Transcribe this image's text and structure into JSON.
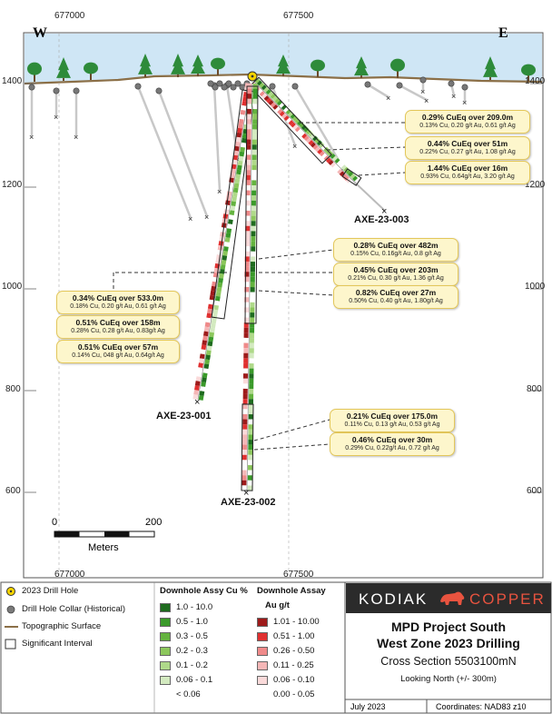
{
  "map": {
    "directions": {
      "west": "W",
      "east": "E"
    },
    "x_ticks_top": [
      "677000",
      "677500"
    ],
    "x_ticks_bottom": [
      "677000",
      "677500"
    ],
    "elevation_ticks": [
      "1400",
      "1200",
      "1000",
      "800",
      "600"
    ],
    "scale_bar": {
      "start": "0",
      "end": "200",
      "unit": "Meters"
    }
  },
  "drill_holes": {
    "axe_23_003": "AXE-23-003",
    "axe_23_001": "AXE-23-001",
    "axe_23_002": "AXE-23-002"
  },
  "callouts": {
    "c1": {
      "headline": "0.29% CuEq over 209.0m",
      "detail": "0.13% Cu, 0.20 g/t Au, 0.61 g/t Ag"
    },
    "c2": {
      "headline": "0.44% CuEq over 51m",
      "detail": "0.22% Cu, 0.27 g/t Au, 1.08 g/t Ag"
    },
    "c3": {
      "headline": "1.44% CuEq over 16m",
      "detail": "0.93% Cu, 0.64g/t Au, 3.20 g/t Ag"
    },
    "c4": {
      "headline": "0.28% CuEq over 482m",
      "detail": "0.15% Cu, 0.16g/t Au, 0.8 g/t Ag"
    },
    "c5": {
      "headline": "0.45% CuEq over 203m",
      "detail": "0.21% Cu, 0.30 g/t Au, 1.36 g/t Ag"
    },
    "c6": {
      "headline": "0.82% CuEq over 27m",
      "detail": "0.50% Cu, 0.40 g/t Au, 1.80g/t Ag"
    },
    "c7": {
      "headline": "0.34% CuEq over 533.0m",
      "detail": "0.18% Cu, 0.20 g/t Au, 0.61 g/t Ag"
    },
    "c8": {
      "headline": "0.51% CuEq over 158m",
      "detail": "0.28% Cu, 0.28 g/t Au, 0.83g/t Ag"
    },
    "c9": {
      "headline": "0.51% CuEq over 57m",
      "detail": "0.14% Cu, 048 g/t Au, 0.64g/t Ag"
    },
    "c10": {
      "headline": "0.21% CuEq over 175.0m",
      "detail": "0.11% Cu, 0.13 g/t Au, 0.53 g/t Ag"
    },
    "c11": {
      "headline": "0.46% CuEq over 30m",
      "detail": "0.29% Cu, 0.22g/t Au, 0.72 g/t Ag"
    }
  },
  "legend": {
    "symbols": {
      "drill_hole_2023": "2023 Drill Hole",
      "collar_historical": "Drill Hole Collar (Historical)",
      "topographic_surface": "Topographic Surface",
      "significant_interval": "Significant  Interval"
    },
    "cu": {
      "title": "Downhole Assy Cu %",
      "ranges": [
        "1.0 - 10.0",
        "0.5 - 1.0",
        "0.3 - 0.5",
        "0.2 - 0.3",
        "0.1 - 0.2",
        "0.06 - 0.1",
        "< 0.06"
      ],
      "colors": [
        "#1e6b1e",
        "#3a9a2a",
        "#64b33f",
        "#8cc75c",
        "#afd98a",
        "#d3eac0",
        "#ffffff"
      ]
    },
    "au": {
      "title": "Downhole Assay",
      "subtitle": "Au g/t",
      "ranges": [
        "1.01 - 10.00",
        "0.51 - 1.00",
        "0.26 - 0.50",
        "0.11 - 0.25",
        "0.06 - 0.10",
        "0.00 - 0.05"
      ],
      "colors": [
        "#9e1b1b",
        "#e03030",
        "#ef8a8a",
        "#f5b7b7",
        "#fadada",
        "#ffffff"
      ]
    }
  },
  "title_block": {
    "logo_left": "KODIAK",
    "logo_right": "COPPER",
    "title_line1": "MPD Project South",
    "title_line2": "West Zone 2023 Drilling",
    "cross_section": "Cross Section 5503100mN",
    "looking": "Looking North (+/- 300m)",
    "date": "July 2023",
    "coordinates": "Coordinates: NAD83 z10"
  },
  "colors": {
    "sky": "#cfe6f5",
    "ground_line": "#8b6f47",
    "tree": "#2e8b3a",
    "callout_bg": "#fdf6cc",
    "title_red": "#e8533f",
    "title_dark": "#2b2b2b"
  }
}
